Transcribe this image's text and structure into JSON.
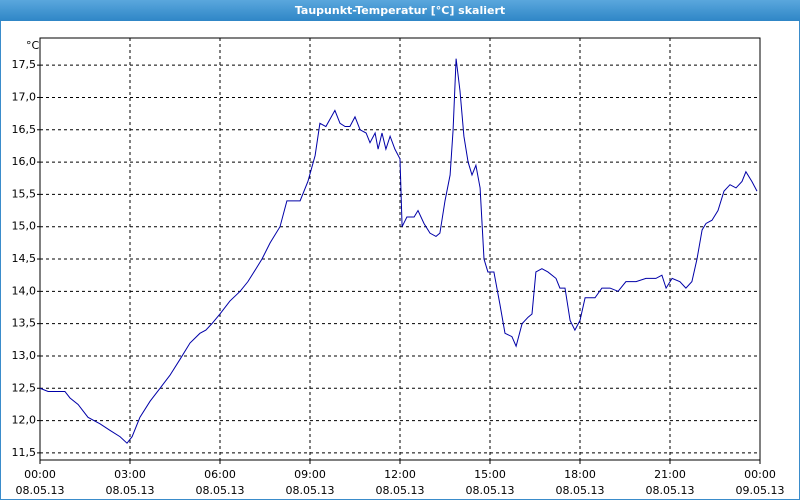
{
  "chart_data": {
    "type": "line",
    "title": "Taupunkt-Temperatur [°C] skaliert",
    "y_unit": "°C",
    "x": [
      0,
      0.27,
      0.83,
      1,
      1.27,
      1.6,
      2,
      2.33,
      2.67,
      2.9,
      3.07,
      3.33,
      3.67,
      4,
      4.33,
      4.67,
      5,
      5.33,
      5.53,
      5.73,
      6,
      6.33,
      6.67,
      6.93,
      7.2,
      7.4,
      7.67,
      8,
      8.23,
      8.67,
      8.93,
      9.17,
      9.33,
      9.53,
      9.83,
      10,
      10.17,
      10.33,
      10.5,
      10.67,
      10.87,
      11,
      11.17,
      11.27,
      11.4,
      11.53,
      11.67,
      11.83,
      12,
      12.07,
      12.23,
      12.47,
      12.6,
      12.8,
      13,
      13.2,
      13.33,
      13.5,
      13.67,
      13.77,
      13.87,
      14,
      14.13,
      14.27,
      14.4,
      14.53,
      14.67,
      14.8,
      14.93,
      15.13,
      15.33,
      15.5,
      15.73,
      15.87,
      16.07,
      16.27,
      16.4,
      16.53,
      16.73,
      16.93,
      17.2,
      17.33,
      17.5,
      17.67,
      17.83,
      18,
      18.17,
      18.5,
      18.73,
      19,
      19.27,
      19.53,
      19.87,
      20.2,
      20.53,
      20.73,
      20.87,
      21.07,
      21.33,
      21.53,
      21.73,
      21.9,
      22.07,
      22.2,
      22.4,
      22.6,
      22.8,
      23,
      23.2,
      23.4,
      23.53,
      23.73,
      23.9
    ],
    "series": [
      {
        "name": "Taupunkt-Temperatur",
        "color": "#0000a8",
        "values": [
          12.5,
          12.45,
          12.45,
          12.35,
          12.25,
          12.05,
          11.95,
          11.85,
          11.75,
          11.65,
          11.75,
          12.05,
          12.3,
          12.5,
          12.7,
          12.95,
          13.2,
          13.35,
          13.4,
          13.5,
          13.65,
          13.85,
          14.0,
          14.15,
          14.35,
          14.5,
          14.75,
          15.0,
          15.4,
          15.4,
          15.7,
          16.1,
          16.6,
          16.55,
          16.8,
          16.6,
          16.55,
          16.55,
          16.7,
          16.5,
          16.45,
          16.3,
          16.45,
          16.2,
          16.45,
          16.2,
          16.4,
          16.2,
          16.05,
          15.0,
          15.15,
          15.15,
          15.25,
          15.05,
          14.9,
          14.85,
          14.9,
          15.4,
          15.8,
          16.5,
          17.6,
          17.1,
          16.4,
          16.0,
          15.8,
          15.95,
          15.6,
          14.5,
          14.3,
          14.3,
          13.8,
          13.35,
          13.3,
          13.15,
          13.5,
          13.6,
          13.65,
          14.3,
          14.35,
          14.3,
          14.2,
          14.05,
          14.05,
          13.55,
          13.4,
          13.55,
          13.9,
          13.9,
          14.05,
          14.05,
          14.0,
          14.15,
          14.15,
          14.2,
          14.2,
          14.25,
          14.05,
          14.2,
          14.15,
          14.05,
          14.15,
          14.5,
          14.95,
          15.05,
          15.1,
          15.25,
          15.55,
          15.65,
          15.6,
          15.7,
          15.85,
          15.7,
          15.55
        ]
      }
    ],
    "xlim": [
      0,
      24
    ],
    "xticks": [
      {
        "value": 0,
        "label": "00:00"
      },
      {
        "value": 3,
        "label": "03:00"
      },
      {
        "value": 6,
        "label": "06:00"
      },
      {
        "value": 9,
        "label": "09:00"
      },
      {
        "value": 12,
        "label": "12:00"
      },
      {
        "value": 15,
        "label": "15:00"
      },
      {
        "value": 18,
        "label": "18:00"
      },
      {
        "value": 21,
        "label": "21:00"
      },
      {
        "value": 24,
        "label": "00:00"
      }
    ],
    "xtick_dates": [
      "08.05.13",
      "08.05.13",
      "08.05.13",
      "08.05.13",
      "08.05.13",
      "08.05.13",
      "08.05.13",
      "08.05.13",
      "09.05.13"
    ],
    "ylim": [
      11.39,
      17.92
    ],
    "yticks": [
      {
        "value": 11.5,
        "label": "11,5"
      },
      {
        "value": 12,
        "label": "12,0"
      },
      {
        "value": 12.5,
        "label": "12,5"
      },
      {
        "value": 13,
        "label": "13,0"
      },
      {
        "value": 13.5,
        "label": "13,5"
      },
      {
        "value": 14,
        "label": "14,0"
      },
      {
        "value": 14.5,
        "label": "14,5"
      },
      {
        "value": 15,
        "label": "15,0"
      },
      {
        "value": 15.5,
        "label": "15,5"
      },
      {
        "value": 16,
        "label": "16,0"
      },
      {
        "value": 16.5,
        "label": "16,5"
      },
      {
        "value": 17,
        "label": "17,0"
      },
      {
        "value": 17.5,
        "label": "17,5"
      }
    ],
    "grid": true
  }
}
